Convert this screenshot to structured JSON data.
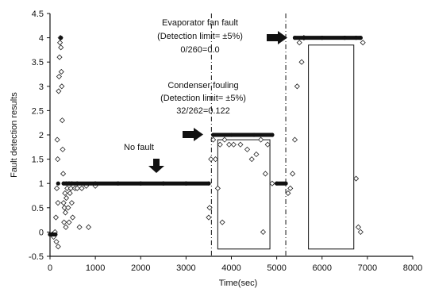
{
  "chart_data": {
    "type": "scatter",
    "xlabel": "Time(sec)",
    "ylabel": "Fault detection results",
    "xlim": [
      0,
      8000
    ],
    "ylim": [
      -0.5,
      4.5
    ],
    "xticks": [
      "0",
      "1000",
      "2000",
      "3000",
      "4000",
      "5000",
      "6000",
      "7000",
      "8000"
    ],
    "yticks": [
      "-0.5",
      "0",
      "0.5",
      "1",
      "1.5",
      "2",
      "2.5",
      "3",
      "3.5",
      "4",
      "4.5"
    ],
    "grid": false,
    "legend": "none",
    "dashed_lines_x": [
      3560,
      5200
    ],
    "series": [
      {
        "values": [
          [
            50,
            -0.05
          ],
          [
            80,
            -0.1
          ],
          [
            110,
            0.0
          ],
          [
            130,
            0.3
          ],
          [
            140,
            -0.2
          ],
          [
            150,
            0.9
          ],
          [
            160,
            1.9
          ],
          [
            170,
            1.5
          ],
          [
            175,
            0.6
          ],
          [
            180,
            -0.3
          ],
          [
            190,
            2.9
          ],
          [
            200,
            3.2
          ],
          [
            210,
            3.6
          ],
          [
            220,
            3.9
          ],
          [
            230,
            4.0
          ],
          [
            240,
            3.8
          ],
          [
            250,
            3.3
          ],
          [
            260,
            3.0
          ],
          [
            270,
            2.3
          ],
          [
            280,
            1.7
          ],
          [
            290,
            1.2
          ],
          [
            300,
            0.6
          ],
          [
            310,
            0.2
          ],
          [
            320,
            0.5
          ],
          [
            330,
            0.8
          ],
          [
            340,
            0.4
          ],
          [
            350,
            0.1
          ],
          [
            360,
            0.7
          ],
          [
            380,
            0.9
          ],
          [
            400,
            0.5
          ],
          [
            420,
            0.2
          ],
          [
            440,
            0.8
          ],
          [
            460,
            0.9
          ],
          [
            480,
            0.6
          ],
          [
            500,
            0.3
          ],
          [
            550,
            0.9
          ],
          [
            600,
            0.9
          ],
          [
            650,
            0.1
          ],
          [
            700,
            0.9
          ],
          [
            800,
            0.95
          ],
          [
            850,
            0.1
          ],
          [
            1000,
            0.95
          ],
          [
            3500,
            0.3
          ],
          [
            3520,
            0.5
          ],
          [
            3550,
            1.5
          ],
          [
            3600,
            1.9
          ],
          [
            3650,
            1.5
          ],
          [
            3700,
            0.9
          ],
          [
            3750,
            1.8
          ],
          [
            3800,
            0.2
          ],
          [
            3850,
            1.9
          ],
          [
            3950,
            1.8
          ],
          [
            4050,
            1.8
          ],
          [
            4200,
            1.8
          ],
          [
            4350,
            1.7
          ],
          [
            4450,
            1.5
          ],
          [
            4550,
            1.6
          ],
          [
            4650,
            1.9
          ],
          [
            4700,
            0.0
          ],
          [
            4750,
            1.2
          ],
          [
            4800,
            1.8
          ],
          [
            4900,
            1.0
          ],
          [
            5250,
            0.8
          ],
          [
            5300,
            0.9
          ],
          [
            5350,
            1.2
          ],
          [
            5400,
            1.9
          ],
          [
            5450,
            3.0
          ],
          [
            5500,
            3.9
          ],
          [
            5550,
            3.5
          ],
          [
            5600,
            4.0
          ],
          [
            6750,
            1.1
          ],
          [
            6800,
            0.1
          ],
          [
            6850,
            0.0
          ],
          [
            6900,
            3.9
          ]
        ]
      },
      {
        "values": [
          [
            0,
            -0.05
          ],
          [
            60,
            -0.05
          ],
          [
            120,
            -0.05
          ],
          [
            180,
            1.0
          ],
          [
            240,
            4.0
          ],
          [
            300,
            1.0
          ],
          [
            360,
            1.0
          ],
          [
            420,
            1.0
          ],
          [
            480,
            1.0
          ],
          [
            600,
            1.0
          ],
          [
            1000,
            1.0
          ],
          [
            1500,
            1.0
          ],
          [
            2000,
            1.0
          ],
          [
            2500,
            1.0
          ],
          [
            3000,
            1.0
          ],
          [
            3500,
            1.0
          ],
          [
            3600,
            2.0
          ],
          [
            4000,
            2.0
          ],
          [
            4500,
            2.0
          ],
          [
            4900,
            2.0
          ],
          [
            5000,
            1.0
          ],
          [
            5200,
            1.0
          ],
          [
            5400,
            4.0
          ],
          [
            6000,
            4.0
          ],
          [
            6500,
            4.0
          ],
          [
            6750,
            4.0
          ],
          [
            6850,
            4.0
          ]
        ]
      }
    ],
    "annotations": [
      {
        "lines": [
          "No fault"
        ]
      },
      {
        "lines": [
          "Condenser fouling",
          "(Detection limit= ±5%)",
          "32/262=0.122"
        ]
      },
      {
        "lines": [
          "Evaporator fan fault",
          "(Detection limit= ±5%)",
          "0/260=0.0"
        ]
      }
    ]
  }
}
